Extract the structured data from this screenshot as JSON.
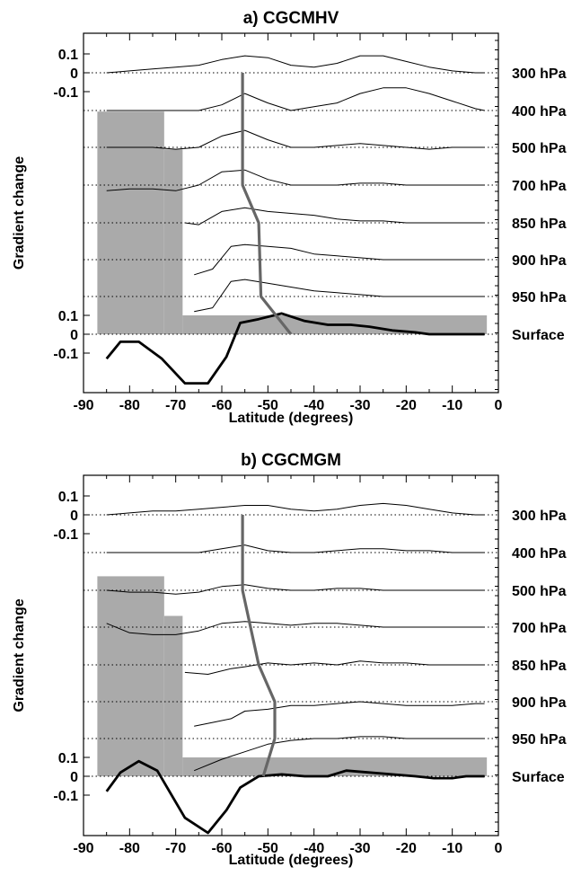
{
  "chart_data": [
    {
      "type": "line",
      "title": "a)  CGCMHV",
      "xlabel": "Latitude (degrees)",
      "ylabel": "Gradient change",
      "xlim": [
        -90,
        0
      ],
      "x_ticks": [
        "-90",
        "-80",
        "-70",
        "-60",
        "-50",
        "-40",
        "-30",
        "-20",
        "-10",
        "0"
      ],
      "y_ticks_top": [
        "0.1",
        "0",
        "-0.1"
      ],
      "y_ticks_bottom": [
        "0.1",
        "0",
        "-0.1"
      ],
      "levels": [
        "300 hPa",
        "400 hPa",
        "500 hPa",
        "700 hPa",
        "850 hPa",
        "900 hPa",
        "950 hPa",
        "Surface"
      ],
      "grid": "dotted zero line for each level",
      "colors": {
        "profiles": "#000000",
        "jet_line": "#666666",
        "bars": "#aaaaaa",
        "surface": "#000000"
      },
      "series": [
        {
          "level": "300 hPa",
          "x": [
            -85,
            -80,
            -75,
            -70,
            -65,
            -60,
            -55,
            -50,
            -45,
            -40,
            -35,
            -30,
            -25,
            -20,
            -15,
            -10,
            -5,
            -3
          ],
          "y": [
            0,
            0.01,
            0.02,
            0.03,
            0.04,
            0.07,
            0.09,
            0.08,
            0.04,
            0.03,
            0.05,
            0.09,
            0.09,
            0.06,
            0.03,
            0.01,
            0,
            0
          ]
        },
        {
          "level": "400 hPa",
          "x": [
            -85,
            -80,
            -75,
            -70,
            -65,
            -60,
            -55,
            -50,
            -45,
            -40,
            -35,
            -30,
            -25,
            -20,
            -15,
            -10,
            -5,
            -3
          ],
          "y": [
            0,
            0,
            0,
            0,
            0,
            0.03,
            0.09,
            0.04,
            0,
            0.02,
            0.04,
            0.09,
            0.12,
            0.12,
            0.09,
            0.05,
            0.01,
            0
          ]
        },
        {
          "level": "500 hPa",
          "x": [
            -85,
            -80,
            -75,
            -70,
            -65,
            -60,
            -55,
            -50,
            -45,
            -40,
            -35,
            -30,
            -25,
            -20,
            -15,
            -10,
            -5,
            -3
          ],
          "y": [
            0,
            0,
            0,
            -0.01,
            0,
            0.06,
            0.09,
            0.04,
            0,
            0,
            0.01,
            0.02,
            0.01,
            0,
            -0.01,
            0,
            0,
            0
          ]
        },
        {
          "level": "700 hPa",
          "x": [
            -85,
            -80,
            -75,
            -70,
            -65,
            -60,
            -55,
            -50,
            -45,
            -40,
            -35,
            -30,
            -25,
            -20,
            -15,
            -10,
            -5,
            -3
          ],
          "y": [
            -0.03,
            -0.02,
            -0.02,
            -0.03,
            0,
            0.07,
            0.08,
            0.03,
            0,
            0,
            0,
            0.01,
            0.01,
            0,
            0,
            0,
            0,
            0
          ]
        },
        {
          "level": "850 hPa",
          "x": [
            -68,
            -65,
            -60,
            -55,
            -50,
            -45,
            -40,
            -35,
            -30,
            -25,
            -20,
            -15,
            -10,
            -5,
            -3
          ],
          "y": [
            0,
            -0.01,
            0.06,
            0.08,
            0.06,
            0.05,
            0.04,
            0.02,
            0.01,
            0.01,
            0,
            0,
            0,
            0,
            0
          ]
        },
        {
          "level": "900 hPa",
          "x": [
            -66,
            -62,
            -58,
            -55,
            -50,
            -45,
            -40,
            -35,
            -30,
            -25,
            -20,
            -15,
            -10,
            -5,
            -3
          ],
          "y": [
            -0.08,
            -0.05,
            0.07,
            0.08,
            0.07,
            0.06,
            0.03,
            0.02,
            0.01,
            0,
            0,
            0,
            0,
            0,
            0
          ]
        },
        {
          "level": "950 hPa",
          "x": [
            -66,
            -62,
            -58,
            -55,
            -50,
            -45,
            -40,
            -35,
            -30,
            -25,
            -20,
            -15,
            -10,
            -5,
            -3
          ],
          "y": [
            -0.08,
            -0.06,
            0.08,
            0.09,
            0.07,
            0.05,
            0.03,
            0.02,
            0.01,
            0,
            0,
            0,
            0,
            0,
            0
          ]
        },
        {
          "level": "Surface",
          "x": [
            -85,
            -82,
            -78,
            -73,
            -68,
            -63,
            -59,
            -56,
            -52,
            -47,
            -42,
            -37,
            -32,
            -28,
            -23,
            -18,
            -15,
            -10,
            -7,
            -3
          ],
          "y": [
            -0.13,
            -0.04,
            -0.04,
            -0.13,
            -0.26,
            -0.26,
            -0.12,
            0.06,
            0.08,
            0.11,
            0.07,
            0.05,
            0.05,
            0.04,
            0.02,
            0.01,
            0,
            0,
            0,
            0
          ]
        }
      ],
      "jet_latitude": [
        -55.5,
        -55.5,
        -52,
        -51.5,
        -45
      ],
      "jet_levels": [
        "300 hPa",
        "700 hPa",
        "850 hPa",
        "950 hPa",
        "Surface"
      ],
      "bars": [
        {
          "x0": -87,
          "x1": -72.5,
          "top_y": 1.18
        },
        {
          "x0": -72.5,
          "x1": -68.5,
          "top_y": 0.98
        },
        {
          "x0": -68.5,
          "x1": -2.5,
          "top_y": 0.1
        }
      ]
    },
    {
      "type": "line",
      "title": "b)  CGCMGM",
      "xlabel": "Latitude (degrees)",
      "ylabel": "Gradient change",
      "xlim": [
        -90,
        0
      ],
      "x_ticks": [
        "-90",
        "-80",
        "-70",
        "-60",
        "-50",
        "-40",
        "-30",
        "-20",
        "-10",
        "0"
      ],
      "y_ticks_top": [
        "0.1",
        "0",
        "-0.1"
      ],
      "y_ticks_bottom": [
        "0.1",
        "0",
        "-0.1"
      ],
      "levels": [
        "300 hPa",
        "400 hPa",
        "500 hPa",
        "700 hPa",
        "850 hPa",
        "900 hPa",
        "950 hPa",
        "Surface"
      ],
      "grid": "dotted zero line for each level",
      "colors": {
        "profiles": "#000000",
        "jet_line": "#666666",
        "bars": "#aaaaaa",
        "surface": "#000000"
      },
      "series": [
        {
          "level": "300 hPa",
          "x": [
            -85,
            -80,
            -75,
            -70,
            -65,
            -60,
            -55,
            -50,
            -45,
            -40,
            -35,
            -30,
            -25,
            -20,
            -15,
            -10,
            -5,
            -3
          ],
          "y": [
            0,
            0.01,
            0.02,
            0.02,
            0.03,
            0.04,
            0.05,
            0.05,
            0.03,
            0.02,
            0.03,
            0.05,
            0.06,
            0.05,
            0.03,
            0.01,
            0,
            0
          ]
        },
        {
          "level": "400 hPa",
          "x": [
            -85,
            -80,
            -75,
            -70,
            -65,
            -60,
            -55,
            -50,
            -45,
            -40,
            -35,
            -30,
            -25,
            -20,
            -15,
            -10,
            -5,
            -3
          ],
          "y": [
            0,
            0,
            0,
            0,
            0,
            0.02,
            0.04,
            0.01,
            0,
            0,
            0.01,
            0.02,
            0.02,
            0.01,
            0.01,
            0,
            0,
            0
          ]
        },
        {
          "level": "500 hPa",
          "x": [
            -85,
            -80,
            -75,
            -70,
            -65,
            -60,
            -55,
            -50,
            -45,
            -40,
            -35,
            -30,
            -25,
            -20,
            -15,
            -10,
            -5,
            -3
          ],
          "y": [
            0,
            -0.01,
            -0.01,
            -0.02,
            -0.01,
            0.02,
            0.03,
            0.01,
            0,
            0,
            0.01,
            0.01,
            0,
            0,
            0,
            0,
            0,
            0
          ]
        },
        {
          "level": "700 hPa",
          "x": [
            -85,
            -80,
            -75,
            -70,
            -65,
            -60,
            -55,
            -50,
            -45,
            -40,
            -35,
            -30,
            -25,
            -20,
            -15,
            -10,
            -5,
            -3
          ],
          "y": [
            0.02,
            -0.03,
            -0.04,
            -0.04,
            -0.02,
            0.02,
            0.03,
            0.02,
            0.01,
            0.02,
            0.02,
            0.01,
            0,
            0,
            0,
            0,
            0,
            0
          ]
        },
        {
          "level": "850 hPa",
          "x": [
            -68,
            -63,
            -58,
            -55,
            -50,
            -45,
            -40,
            -35,
            -30,
            -25,
            -20,
            -15,
            -10,
            -5,
            -3
          ],
          "y": [
            -0.04,
            -0.05,
            -0.02,
            -0.01,
            0.01,
            0,
            0.01,
            0,
            0.02,
            0.01,
            0.01,
            0,
            0,
            0,
            0
          ]
        },
        {
          "level": "900 hPa",
          "x": [
            -66,
            -62,
            -58,
            -55,
            -50,
            -45,
            -40,
            -35,
            -30,
            -25,
            -20,
            -15,
            -10,
            -5,
            -3
          ],
          "y": [
            -0.13,
            -0.11,
            -0.09,
            -0.05,
            -0.04,
            -0.02,
            -0.02,
            -0.01,
            0,
            -0.01,
            -0.02,
            -0.02,
            -0.02,
            -0.01,
            -0.01
          ]
        },
        {
          "level": "950 hPa",
          "x": [
            -66,
            -60,
            -55,
            -50,
            -45,
            -40,
            -35,
            -30,
            -25,
            -20,
            -15,
            -10,
            -5,
            -3
          ],
          "y": [
            -0.17,
            -0.11,
            -0.07,
            -0.03,
            -0.01,
            0,
            0,
            0.01,
            0.01,
            0,
            0,
            0,
            0,
            0
          ]
        },
        {
          "level": "Surface",
          "x": [
            -85,
            -82,
            -78,
            -74,
            -68,
            -63,
            -59,
            -56,
            -52,
            -47,
            -42,
            -37,
            -33,
            -28,
            -23,
            -18,
            -14,
            -10,
            -7,
            -3
          ],
          "y": [
            -0.08,
            0.02,
            0.08,
            0.03,
            -0.22,
            -0.3,
            -0.18,
            -0.06,
            0,
            0.01,
            0,
            0,
            0.03,
            0.02,
            0.01,
            0,
            -0.01,
            -0.01,
            0,
            0
          ]
        }
      ],
      "jet_latitude": [
        -55.5,
        -55.5,
        -52,
        -48.5,
        -48.5,
        -51
      ],
      "jet_levels": [
        "300 hPa",
        "500 hPa",
        "850 hPa",
        "900 hPa",
        "950 hPa",
        "Surface"
      ],
      "bars": [
        {
          "x0": -87,
          "x1": -72.5,
          "top_y": 1.06
        },
        {
          "x0": -72.5,
          "x1": -68.5,
          "top_y": 0.85
        },
        {
          "x0": -68.5,
          "x1": -2.5,
          "top_y": 0.1
        }
      ]
    }
  ]
}
